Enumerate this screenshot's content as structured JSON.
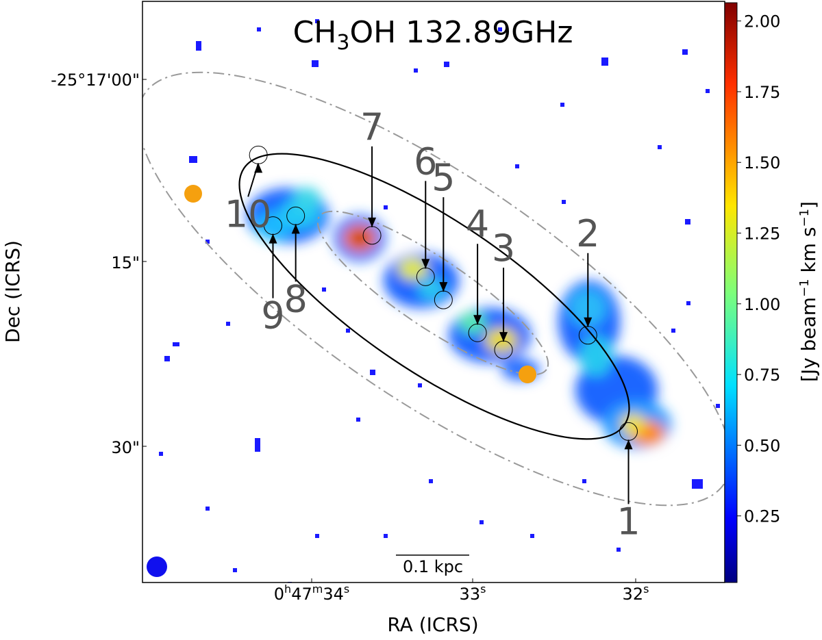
{
  "chart_data": {
    "type": "heatmap",
    "title": "CH3OH 132.89GHz",
    "title_parts": {
      "prefix": "CH",
      "subscript": "3",
      "suffix": "OH 132.89GHz"
    },
    "xlabel": "RA (ICRS)",
    "ylabel": "Dec (ICRS)",
    "x_ticks": [
      {
        "label": "0h47m34s",
        "parts": {
          "h": "0",
          "m": "47",
          "s": "34"
        }
      },
      {
        "label": "33s",
        "parts": {
          "s": "33"
        }
      },
      {
        "label": "32s",
        "parts": {
          "s": "32"
        }
      }
    ],
    "y_ticks": [
      "-25°17'00\"",
      "15\"",
      "30\""
    ],
    "colorbar": {
      "label": "[Jy beam−1 km s−1]",
      "label_text": "[Jy beam",
      "label_exp1": "−1",
      "label_unit": " km s",
      "label_exp2": "−1",
      "label_end": "]",
      "ticks": [
        "0.25",
        "0.50",
        "0.75",
        "1.00",
        "1.25",
        "1.50",
        "1.75",
        "2.00"
      ],
      "colormap": "jet",
      "max": 2.05
    },
    "scale_bar": "0.1 kpc",
    "sources": [
      {
        "id": "1",
        "label": "1",
        "ra": "0h47m32.04s",
        "dec": "-25°17'28.9\"",
        "intensity": 1.2
      },
      {
        "id": "2",
        "label": "2",
        "ra": "0h47m32.29s",
        "dec": "-25°17'21.0\"",
        "intensity": 0.55
      },
      {
        "id": "3",
        "label": "3",
        "ra": "0h47m32.81s",
        "dec": "-25°17'22.2\"",
        "intensity": 0.95
      },
      {
        "id": "4",
        "label": "4",
        "ra": "0h47m32.97s",
        "dec": "-25°17'20.8\"",
        "intensity": 0.7
      },
      {
        "id": "5",
        "label": "5",
        "ra": "0h47m33.18s",
        "dec": "-25°17'18.1\"",
        "intensity": 0.45
      },
      {
        "id": "6",
        "label": "6",
        "ra": "0h47m33.29s",
        "dec": "-25°17'16.2\"",
        "intensity": 0.9
      },
      {
        "id": "7",
        "label": "7",
        "ra": "0h47m33.62s",
        "dec": "-25°17'12.8\"",
        "intensity": 2.0
      },
      {
        "id": "8",
        "label": "8",
        "ra": "0h47m34.09s",
        "dec": "-25°17'11.2\"",
        "intensity": 0.55
      },
      {
        "id": "9",
        "label": "9",
        "ra": "0h47m34.23s",
        "dec": "-25°17'12.0\"",
        "intensity": 0.55
      },
      {
        "id": "10",
        "label": "10",
        "ra": "0h47m34.32s",
        "dec": "-25°17'06.2\"",
        "intensity": 0.1
      }
    ],
    "markers": [
      {
        "id": "orange-marker-1",
        "color": "#f5a00f"
      },
      {
        "id": "orange-marker-2",
        "color": "#f5a00f"
      }
    ],
    "beam": {
      "color": "#1010ee"
    },
    "ellipse_colors": {
      "solid": "#000000",
      "dashdot": "#999999"
    }
  }
}
